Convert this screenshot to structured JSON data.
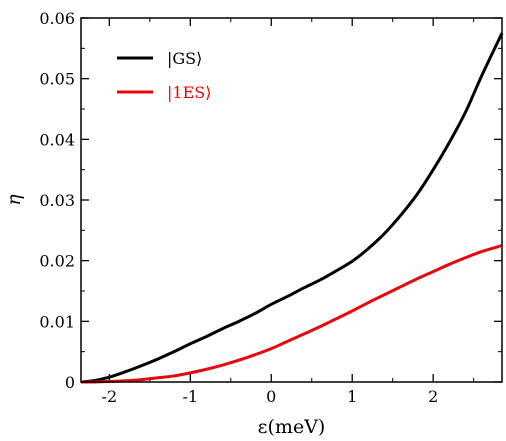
{
  "chart_data": {
    "type": "line",
    "xlabel": "ε(meV)",
    "ylabel": "η",
    "xlim": [
      -2.35,
      2.85
    ],
    "ylim": [
      0,
      0.06
    ],
    "xticks": [
      -2,
      -1,
      0,
      1,
      2
    ],
    "xtick_labels": [
      "-2",
      "-1",
      "0",
      "1",
      "2"
    ],
    "yticks": [
      0,
      0.01,
      0.02,
      0.03,
      0.04,
      0.05,
      0.06
    ],
    "ytick_labels": [
      "0",
      "0.01",
      "0.02",
      "0.03",
      "0.04",
      "0.05",
      "0.06"
    ],
    "grid": false,
    "legend_position": "top-left",
    "series": [
      {
        "name": "|GS⟩",
        "color": "#000000",
        "x": [
          -2.35,
          -2.2,
          -2.0,
          -1.8,
          -1.6,
          -1.4,
          -1.2,
          -1.0,
          -0.8,
          -0.6,
          -0.4,
          -0.2,
          0.0,
          0.2,
          0.4,
          0.6,
          0.8,
          1.0,
          1.2,
          1.4,
          1.6,
          1.8,
          2.0,
          2.2,
          2.4,
          2.6,
          2.85
        ],
        "y": [
          0.0,
          0.0002,
          0.0008,
          0.0017,
          0.0027,
          0.0038,
          0.005,
          0.0063,
          0.0075,
          0.0088,
          0.01,
          0.0113,
          0.0128,
          0.0141,
          0.0155,
          0.0168,
          0.0183,
          0.0199,
          0.022,
          0.0245,
          0.0275,
          0.0309,
          0.035,
          0.0395,
          0.0445,
          0.0505,
          0.0575
        ]
      },
      {
        "name": "|1ES⟩",
        "color": "#e8070b",
        "x": [
          -2.35,
          -2.2,
          -2.0,
          -1.8,
          -1.6,
          -1.4,
          -1.2,
          -1.0,
          -0.8,
          -0.6,
          -0.4,
          -0.2,
          0.0,
          0.2,
          0.4,
          0.6,
          0.8,
          1.0,
          1.2,
          1.4,
          1.6,
          1.8,
          2.0,
          2.2,
          2.4,
          2.6,
          2.85
        ],
        "y": [
          0.0,
          0.0,
          0.0001,
          0.0002,
          0.0004,
          0.0007,
          0.001,
          0.0015,
          0.0021,
          0.0028,
          0.0036,
          0.0045,
          0.0055,
          0.0067,
          0.0079,
          0.0091,
          0.0104,
          0.0117,
          0.0131,
          0.0144,
          0.0157,
          0.017,
          0.0182,
          0.0194,
          0.0205,
          0.0215,
          0.0225
        ]
      }
    ]
  }
}
